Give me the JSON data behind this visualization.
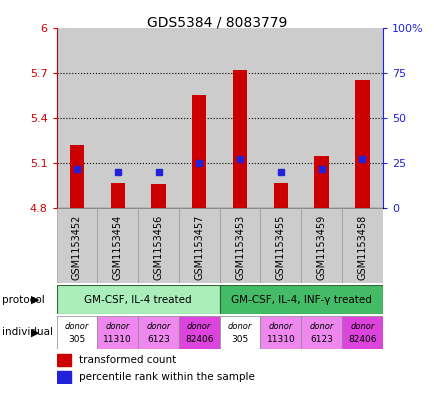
{
  "title": "GDS5384 / 8083779",
  "samples": [
    "GSM1153452",
    "GSM1153454",
    "GSM1153456",
    "GSM1153457",
    "GSM1153453",
    "GSM1153455",
    "GSM1153459",
    "GSM1153458"
  ],
  "red_values": [
    5.22,
    4.97,
    4.96,
    5.55,
    5.72,
    4.97,
    5.15,
    5.65
  ],
  "blue_values_pct": [
    22,
    20,
    20,
    25,
    27,
    20,
    22,
    27
  ],
  "ymin": 4.8,
  "ymax": 6.0,
  "y_ticks": [
    4.8,
    5.1,
    5.4,
    5.7,
    6.0
  ],
  "y_tick_labels": [
    "4.8",
    "5.1",
    "5.4",
    "5.7",
    "6"
  ],
  "right_yticks": [
    0,
    25,
    50,
    75,
    100
  ],
  "right_yticklabels": [
    "0",
    "25",
    "50",
    "75",
    "100%"
  ],
  "dotted_lines": [
    5.1,
    5.4,
    5.7
  ],
  "bar_color": "#cc0000",
  "blue_color": "#2222dd",
  "base_value": 4.8,
  "protocol_label1": "GM-CSF, IL-4 treated",
  "protocol_label2": "GM-CSF, IL-4, INF-γ treated",
  "protocol_color1": "#aaeebb",
  "protocol_color2": "#44bb66",
  "ind_labels": [
    "donor\n305",
    "donor\n11310",
    "donor\n6123",
    "donor\n82406",
    "donor\n305",
    "donor\n11310",
    "donor\n6123",
    "donor\n82406"
  ],
  "ind_colors": [
    "#ffffff",
    "#ee88ee",
    "#ee88ee",
    "#dd44dd",
    "#ffffff",
    "#ee88ee",
    "#ee88ee",
    "#dd44dd"
  ],
  "left_axis_color": "#cc0000",
  "right_axis_color": "#2222dd",
  "sample_bg": "#cccccc",
  "bar_width": 0.35
}
